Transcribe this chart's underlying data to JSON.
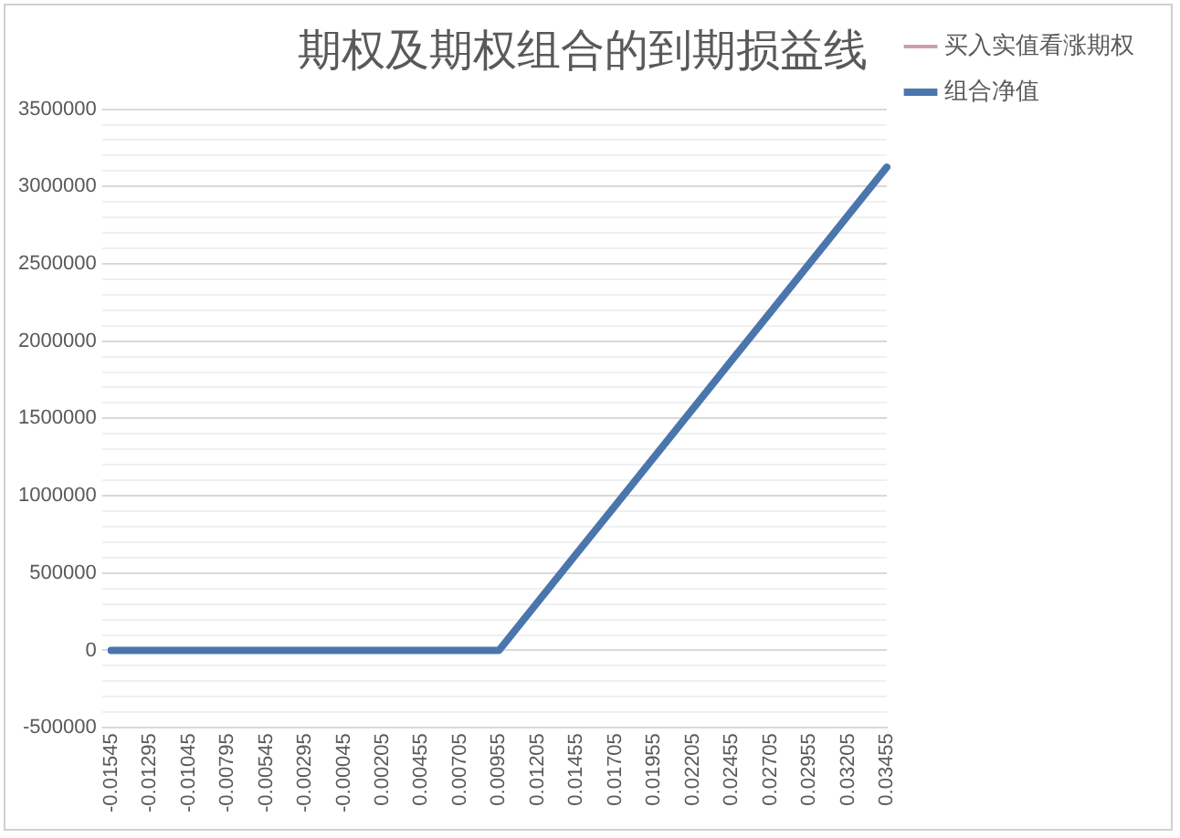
{
  "chart_data": {
    "type": "line",
    "title": "期权及期权组合的到期损益线",
    "categories": [
      "-0.01545",
      "-0.01295",
      "-0.01045",
      "-0.00795",
      "-0.00545",
      "-0.00295",
      "-0.00045",
      "0.00205",
      "0.00455",
      "0.00705",
      "0.00955",
      "0.01205",
      "0.01455",
      "0.01705",
      "0.01955",
      "0.02205",
      "0.02455",
      "0.02705",
      "0.02955",
      "0.03205",
      "0.03455"
    ],
    "series": [
      {
        "name": "买入实值看涨期权",
        "color": "#c9a0a8",
        "values": [
          null,
          null,
          null,
          null,
          null,
          null,
          null,
          null,
          null,
          null,
          null,
          null,
          null,
          null,
          null,
          null,
          null,
          null,
          null,
          null,
          null
        ]
      },
      {
        "name": "组合净值",
        "color": "#4a76ad",
        "values": [
          0,
          0,
          0,
          0,
          0,
          0,
          0,
          0,
          0,
          0,
          0,
          312500,
          625000,
          937500,
          1250000,
          1562500,
          1875000,
          2187500,
          2500000,
          2812500,
          3125000
        ]
      }
    ],
    "ylim": [
      -500000,
      3500000
    ],
    "yticks": [
      -500000,
      {
        "value": -400000,
        "label": null
      },
      {
        "value": -300000,
        "label": null
      },
      {
        "value": -200000,
        "label": null
      },
      {
        "value": -100000,
        "label": null
      },
      0,
      {
        "value": 100000,
        "label": null
      },
      {
        "value": 200000,
        "label": null
      },
      {
        "value": 300000,
        "label": null
      },
      {
        "value": 400000,
        "label": null
      },
      500000,
      {
        "value": 600000,
        "label": null
      },
      {
        "value": 700000,
        "label": null
      },
      {
        "value": 800000,
        "label": null
      },
      {
        "value": 900000,
        "label": null
      },
      1000000,
      {
        "value": 1100000,
        "label": null
      },
      {
        "value": 1200000,
        "label": null
      },
      {
        "value": 1300000,
        "label": null
      },
      {
        "value": 1400000,
        "label": null
      },
      1500000,
      {
        "value": 1600000,
        "label": null
      },
      {
        "value": 1700000,
        "label": null
      },
      {
        "value": 1800000,
        "label": null
      },
      {
        "value": 1900000,
        "label": null
      },
      2000000,
      {
        "value": 2100000,
        "label": null
      },
      {
        "value": 2200000,
        "label": null
      },
      {
        "value": 2300000,
        "label": null
      },
      {
        "value": 2400000,
        "label": null
      },
      2500000,
      {
        "value": 2600000,
        "label": null
      },
      {
        "value": 2700000,
        "label": null
      },
      {
        "value": 2800000,
        "label": null
      },
      {
        "value": 2900000,
        "label": null
      },
      3000000,
      {
        "value": 3100000,
        "label": null
      },
      {
        "value": 3200000,
        "label": null
      },
      {
        "value": 3300000,
        "label": null
      },
      {
        "value": 3400000,
        "label": null
      },
      3500000
    ],
    "grid": "y",
    "legend": "right",
    "marker": "none",
    "line_style": "solid"
  }
}
